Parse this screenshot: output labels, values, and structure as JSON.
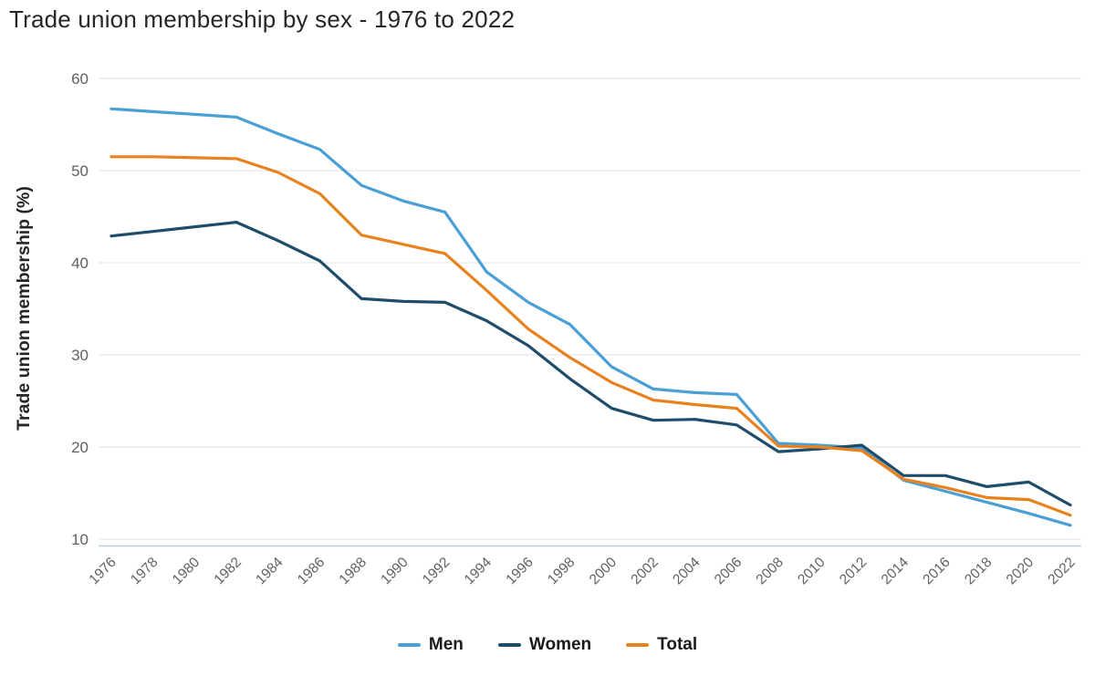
{
  "title": "Trade union membership by sex - 1976 to 2022",
  "colors": {
    "men": "#4A9FD5",
    "women": "#1E4D6B",
    "total": "#E8821E",
    "grid": "#ececec",
    "axis_line": "#b5cfdd",
    "tick_label": "#606060",
    "axis_title": "#262626",
    "title_text": "#262626"
  },
  "chart_data": {
    "type": "line",
    "title": "Trade union membership by sex - 1976 to 2022",
    "xlabel": "",
    "ylabel": "Trade union membership (%)",
    "categories": [
      "1976",
      "1978",
      "1980",
      "1982",
      "1984",
      "1986",
      "1988",
      "1990",
      "1992",
      "1994",
      "1996",
      "1998",
      "2000",
      "2002",
      "2004",
      "2006",
      "2008",
      "2010",
      "2012",
      "2014",
      "2016",
      "2018",
      "2020",
      "2022"
    ],
    "series": [
      {
        "name": "Men",
        "color_key": "men",
        "values": [
          56.7,
          56.4,
          56.1,
          55.8,
          54.0,
          52.3,
          48.4,
          46.7,
          45.5,
          39.0,
          35.7,
          33.3,
          28.7,
          26.3,
          25.9,
          25.7,
          20.4,
          20.2,
          19.9,
          16.4,
          15.2,
          14.0,
          12.8,
          11.5
        ]
      },
      {
        "name": "Women",
        "color_key": "women",
        "values": [
          42.9,
          43.4,
          43.9,
          44.4,
          42.4,
          40.2,
          36.1,
          35.8,
          35.7,
          33.7,
          31.0,
          27.4,
          24.2,
          22.9,
          23.0,
          22.4,
          19.5,
          19.8,
          20.2,
          16.9,
          16.9,
          15.7,
          16.2,
          13.7
        ]
      },
      {
        "name": "Total",
        "color_key": "total",
        "values": [
          51.5,
          51.5,
          51.4,
          51.3,
          49.8,
          47.5,
          43.0,
          42.0,
          41.0,
          37.0,
          32.8,
          29.7,
          27.0,
          25.1,
          24.6,
          24.2,
          20.1,
          20.0,
          19.6,
          16.5,
          15.6,
          14.5,
          14.3,
          12.6
        ]
      }
    ],
    "ylim": [
      10,
      60
    ],
    "yticks": [
      10,
      20,
      30,
      40,
      50,
      60
    ],
    "grid": "horizontal",
    "legend_position": "bottom"
  },
  "legend": {
    "items": [
      {
        "label": "Men",
        "color_key": "men"
      },
      {
        "label": "Women",
        "color_key": "women"
      },
      {
        "label": "Total",
        "color_key": "total"
      }
    ]
  }
}
